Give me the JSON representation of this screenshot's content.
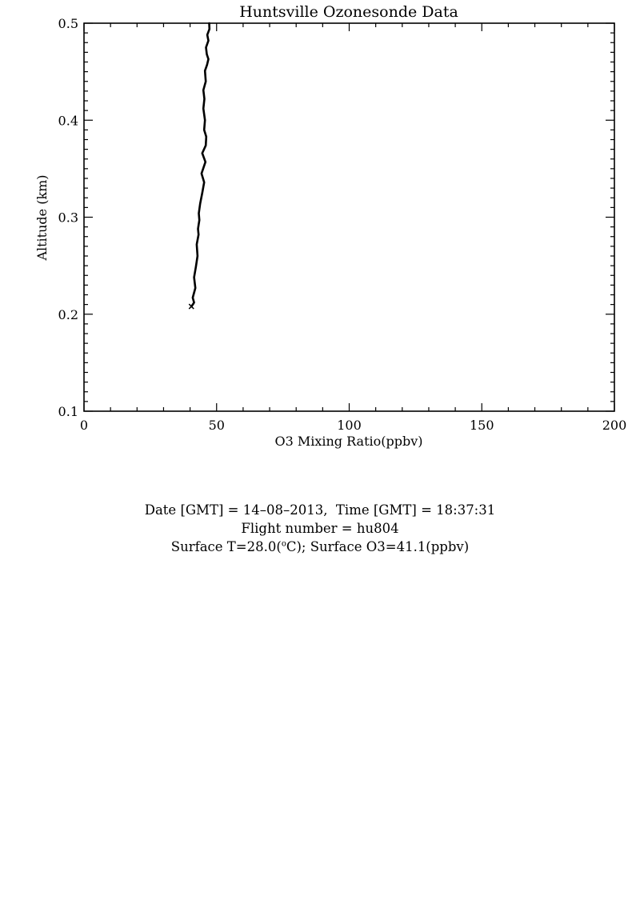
{
  "chart_data": {
    "type": "line",
    "title": "Huntsville Ozonesonde Data",
    "xlabel": "O3 Mixing Ratio(ppbv)",
    "ylabel": "Altitude (km)",
    "xlim": [
      0,
      200
    ],
    "ylim": [
      0.1,
      0.5
    ],
    "xticks": [
      0,
      50,
      100,
      150,
      200
    ],
    "xtick_labels": [
      "0",
      "50",
      "100",
      "150",
      "200"
    ],
    "yticks": [
      0.1,
      0.2,
      0.3,
      0.4,
      0.5
    ],
    "ytick_labels": [
      "0.1",
      "0.2",
      "0.3",
      "0.4",
      "0.5"
    ],
    "grid": false,
    "series": [
      {
        "color": "#000000",
        "x": [
          40.5,
          41.5,
          41.0,
          42.0,
          41.5,
          42.2,
          42.8,
          42.5,
          43.2,
          43.0,
          43.5,
          43.3,
          43.8,
          44.6,
          45.3,
          44.3,
          45.8,
          44.6,
          45.9,
          46.1,
          45.3,
          45.6,
          45.0,
          45.4,
          45.0,
          45.9,
          45.6,
          46.4,
          46.9,
          46.3,
          46.0,
          46.9,
          46.5,
          47.3,
          47.2
        ],
        "y": [
          0.208,
          0.212,
          0.217,
          0.227,
          0.238,
          0.249,
          0.26,
          0.272,
          0.282,
          0.288,
          0.297,
          0.304,
          0.314,
          0.325,
          0.336,
          0.345,
          0.357,
          0.366,
          0.374,
          0.383,
          0.39,
          0.4,
          0.412,
          0.422,
          0.431,
          0.44,
          0.451,
          0.457,
          0.463,
          0.468,
          0.475,
          0.482,
          0.488,
          0.494,
          0.5
        ]
      }
    ]
  },
  "info": {
    "line1": "Date [GMT] = 14–08–2013,  Time [GMT] = 18:37:31",
    "line2": "Flight number = hu804",
    "line3_a": "Surface T=28.0(",
    "line3_sup": "o",
    "line3_b": "C); Surface O3=41.1(ppbv)"
  }
}
